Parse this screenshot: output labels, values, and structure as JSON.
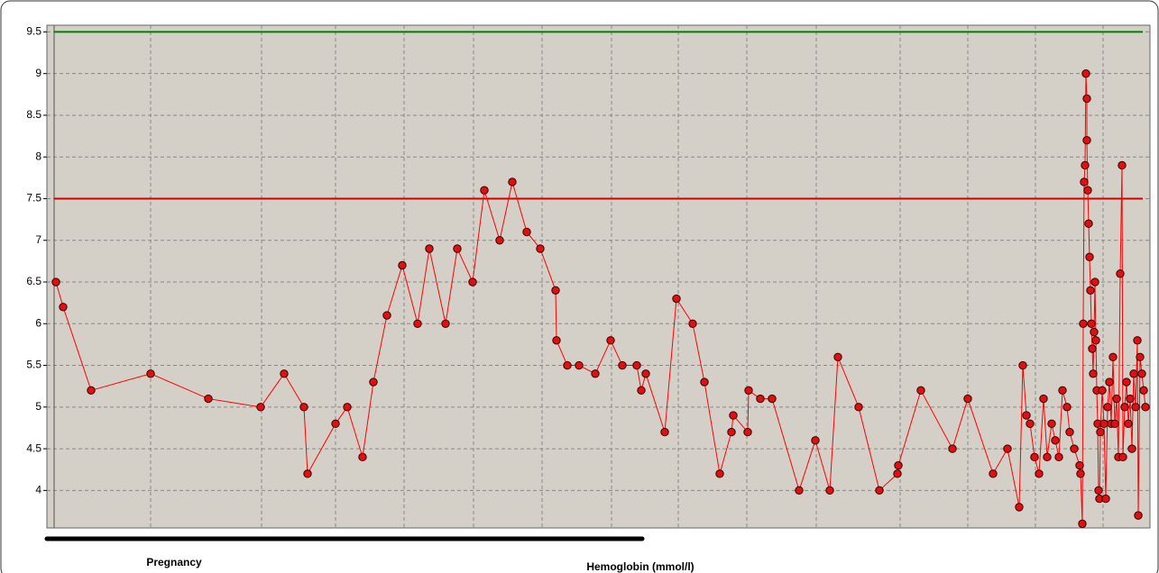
{
  "chart_data": {
    "type": "line",
    "x_label": "Hemoglobin (mmol/l)",
    "annotation": {
      "text": "Pregnancy",
      "span": [
        0,
        660
      ]
    },
    "xlim": [
      0,
      1223
    ],
    "xticks": [
      115,
      238,
      320,
      396,
      473,
      549,
      626,
      700,
      776,
      853,
      946,
      1021,
      1096,
      1171
    ],
    "ylim": [
      3.55,
      9.58
    ],
    "yticks": [
      4,
      4.5,
      5,
      5.5,
      6,
      6.5,
      7,
      7.5,
      8,
      8.5,
      9,
      9.5
    ],
    "grid": true,
    "hlines": [
      {
        "value": 9.5,
        "color": "#008000"
      },
      {
        "value": 7.5,
        "color": "#cc0000"
      }
    ],
    "series": [
      {
        "color": "#ff0000",
        "x": [
          10,
          18,
          49,
          115,
          179,
          237,
          263,
          285,
          289,
          320,
          333,
          350,
          362,
          377,
          394,
          411,
          424,
          442,
          455,
          472,
          485,
          502,
          516,
          532,
          547,
          564,
          565,
          577,
          590,
          608,
          625,
          638,
          654,
          659,
          664,
          685,
          698,
          716,
          729,
          746,
          759,
          761,
          777,
          778,
          791,
          804,
          834,
          852,
          868,
          877,
          900,
          923,
          943,
          944,
          969,
          1004,
          1021,
          1049,
          1065,
          1078,
          1082,
          1086,
          1090,
          1095,
          1100,
          1105,
          1109,
          1114,
          1118,
          1122,
          1126,
          1131,
          1134,
          1139,
          1145,
          1146,
          1148,
          1149,
          1150,
          1151,
          1152,
          1153,
          1153,
          1154,
          1155,
          1156,
          1157,
          1158,
          1159,
          1160,
          1161,
          1162,
          1163,
          1164,
          1165,
          1166,
          1167,
          1168,
          1170,
          1172,
          1174,
          1176,
          1178,
          1180,
          1182,
          1184,
          1186,
          1188,
          1190,
          1192,
          1193,
          1195,
          1197,
          1199,
          1201,
          1203,
          1205,
          1207,
          1209,
          1210,
          1212,
          1214,
          1216,
          1218
        ],
        "values": [
          6.5,
          6.2,
          5.2,
          5.4,
          5.1,
          5.0,
          5.4,
          5.0,
          4.2,
          4.8,
          5.0,
          4.4,
          5.3,
          6.1,
          6.7,
          6.0,
          6.9,
          6.0,
          6.9,
          6.5,
          7.6,
          7.0,
          7.7,
          7.1,
          6.9,
          6.4,
          5.8,
          5.5,
          5.5,
          5.4,
          5.8,
          5.5,
          5.5,
          5.2,
          5.4,
          4.7,
          6.3,
          6.0,
          5.3,
          4.2,
          4.7,
          4.9,
          4.7,
          5.2,
          5.1,
          5.1,
          4.0,
          4.6,
          4.0,
          5.6,
          5.0,
          4.0,
          4.2,
          4.3,
          5.2,
          4.5,
          5.1,
          4.2,
          4.5,
          3.8,
          5.5,
          4.9,
          4.8,
          4.4,
          4.2,
          5.1,
          4.4,
          4.8,
          4.6,
          4.4,
          5.2,
          5.0,
          4.7,
          4.5,
          4.3,
          4.2,
          3.6,
          6.0,
          7.7,
          7.9,
          9.0,
          8.7,
          8.2,
          7.6,
          7.2,
          6.8,
          6.4,
          6.0,
          5.7,
          5.4,
          5.9,
          6.5,
          5.8,
          5.2,
          4.8,
          4.0,
          3.9,
          4.7,
          5.2,
          4.8,
          3.9,
          5.0,
          5.3,
          4.8,
          5.6,
          4.8,
          5.1,
          4.4,
          6.6,
          7.9,
          4.4,
          5.0,
          5.3,
          4.8,
          5.1,
          4.5,
          5.4,
          5.0,
          5.8,
          3.7,
          5.6,
          5.4,
          5.2,
          5.0
        ]
      }
    ]
  }
}
